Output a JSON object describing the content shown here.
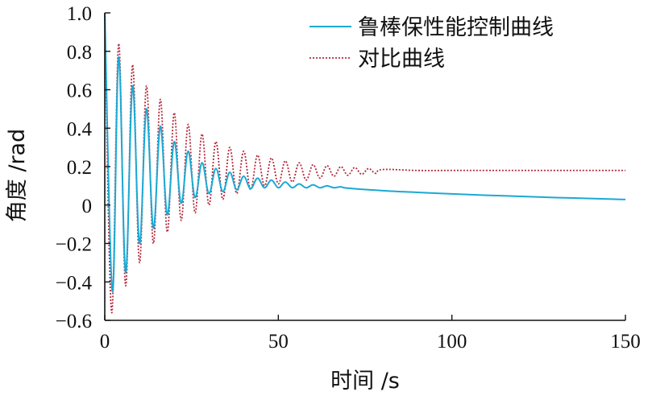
{
  "colors": {
    "robust": "#1ba9d4",
    "compare": "#b5283a",
    "axis": "#111111"
  },
  "chart_data": {
    "type": "line",
    "xlabel": "时间 /s",
    "ylabel": "角度 /rad",
    "xlim": [
      0,
      150
    ],
    "ylim": [
      -0.6,
      1.0
    ],
    "x_ticks": [
      0,
      50,
      100,
      150
    ],
    "x_tick_labels": [
      "0",
      "50",
      "100",
      "150"
    ],
    "y_ticks": [
      -0.6,
      -0.4,
      -0.2,
      0,
      0.2,
      0.4,
      0.6,
      0.8,
      1.0
    ],
    "y_tick_labels": [
      "−0.6",
      "−0.4",
      "−0.2",
      "0",
      "0.2",
      "0.4",
      "0.6",
      "0.8",
      "1.0"
    ],
    "grid": false,
    "legend_position": "top-right",
    "series": [
      {
        "name": "鲁棒保性能控制曲线",
        "style": "solid",
        "color_key": "robust",
        "x": [
          0,
          2.2,
          4,
          6,
          8,
          10,
          12,
          14,
          16,
          18,
          20,
          22,
          24,
          26,
          28,
          30,
          32,
          34,
          36,
          38,
          40,
          42,
          44,
          46,
          48,
          50,
          52,
          54,
          56,
          58,
          60,
          62,
          64,
          66,
          68,
          70,
          80,
          90,
          100,
          110,
          120,
          130,
          140,
          150
        ],
        "y": [
          1.0,
          -0.45,
          0.77,
          -0.35,
          0.62,
          -0.2,
          0.5,
          -0.12,
          0.41,
          -0.05,
          0.33,
          0.01,
          0.28,
          0.04,
          0.22,
          0.06,
          0.19,
          0.07,
          0.17,
          0.08,
          0.15,
          0.085,
          0.14,
          0.09,
          0.13,
          0.09,
          0.12,
          0.09,
          0.11,
          0.09,
          0.105,
          0.09,
          0.1,
          0.09,
          0.095,
          0.088,
          0.075,
          0.066,
          0.058,
          0.051,
          0.045,
          0.039,
          0.034,
          0.029
        ]
      },
      {
        "name": "对比曲线",
        "style": "dotted",
        "color_key": "compare",
        "x": [
          0,
          2,
          4,
          6,
          8,
          10,
          12,
          14,
          16,
          18,
          20,
          22,
          24,
          26,
          28,
          30,
          32,
          34,
          36,
          38,
          40,
          42,
          44,
          46,
          48,
          50,
          52,
          54,
          56,
          58,
          60,
          62,
          64,
          66,
          68,
          70,
          72,
          74,
          76,
          78,
          80,
          90,
          100,
          110,
          120,
          130,
          140,
          150
        ],
        "y": [
          1.0,
          -0.56,
          0.84,
          -0.42,
          0.73,
          -0.3,
          0.62,
          -0.2,
          0.55,
          -0.14,
          0.48,
          -0.08,
          0.42,
          -0.04,
          0.37,
          0.0,
          0.33,
          0.03,
          0.3,
          0.06,
          0.28,
          0.08,
          0.26,
          0.1,
          0.245,
          0.11,
          0.23,
          0.12,
          0.22,
          0.13,
          0.21,
          0.14,
          0.205,
          0.15,
          0.2,
          0.155,
          0.195,
          0.16,
          0.19,
          0.165,
          0.185,
          0.18,
          0.18,
          0.18,
          0.18,
          0.18,
          0.18,
          0.18
        ]
      }
    ]
  }
}
